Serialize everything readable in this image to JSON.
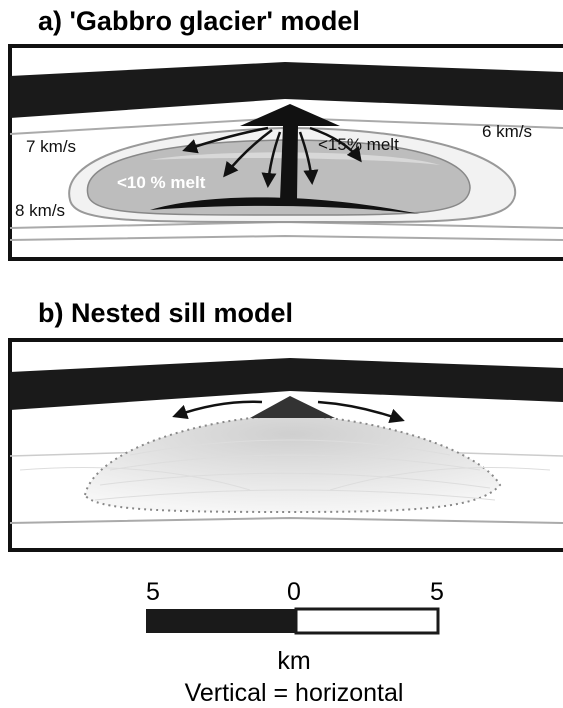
{
  "panels": [
    {
      "title": "a) 'Gabbro glacier' model",
      "labels": [
        "7 km/s",
        "6 km/s",
        "8 km/s",
        "<15% melt",
        "<10 % melt"
      ]
    },
    {
      "title": "b) Nested sill model"
    }
  ],
  "scale_bar": {
    "ticks": [
      "5",
      "0",
      "5"
    ],
    "unit": "km",
    "note": "Vertical = horizontal"
  }
}
